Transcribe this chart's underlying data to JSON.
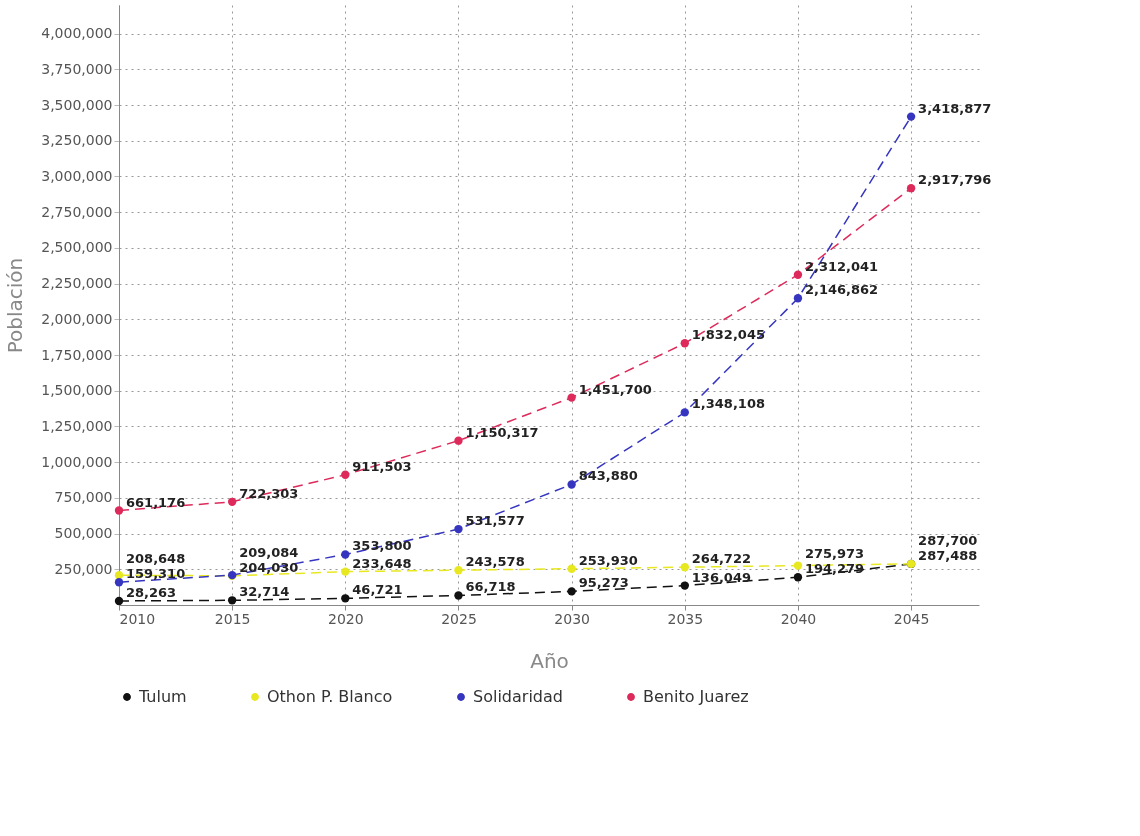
{
  "chart_data": {
    "type": "line",
    "xlabel": "Año",
    "ylabel": "Población",
    "x": [
      2010,
      2015,
      2020,
      2025,
      2030,
      2035,
      2040,
      2045
    ],
    "series": [
      {
        "name": "Tulum",
        "color": "#111111",
        "values": [
          28263,
          32714,
          46721,
          66718,
          95273,
          136049,
          194279,
          287488
        ],
        "value_labels": [
          "28,263",
          "32,714",
          "46,721",
          "66,718",
          "95,273",
          "136,049",
          "194,279",
          "287,488"
        ]
      },
      {
        "name": "Othon P. Blanco",
        "color": "#e8e820",
        "values": [
          208648,
          204030,
          233648,
          243578,
          253930,
          264722,
          275973,
          287700
        ],
        "value_labels": [
          "208,648",
          "204,030",
          "233,648",
          "243,578",
          "253,930",
          "264,722",
          "275,973",
          "287,700"
        ]
      },
      {
        "name": "Solidaridad",
        "color": "#3535c0",
        "values": [
          159310,
          209084,
          353800,
          531577,
          843880,
          1348108,
          2146862,
          3418877
        ],
        "value_labels": [
          "159,310",
          "209,084",
          "353,800",
          "531,577",
          "843,880",
          "1,348,108",
          "2,146,862",
          "3,418,877"
        ]
      },
      {
        "name": "Benito Juarez",
        "color": "#dd2a5a",
        "values": [
          661176,
          722303,
          911503,
          1150317,
          1451700,
          1832045,
          2312041,
          2917796
        ],
        "value_labels": [
          "661,176",
          "722,303",
          "911,503",
          "1,150,317",
          "1,451,700",
          "1,832,045",
          "2,312,041",
          "2,917,796"
        ]
      }
    ],
    "xlim": [
      2010,
      2048
    ],
    "xticks": [
      2010,
      2015,
      2020,
      2025,
      2030,
      2035,
      2040,
      2045
    ],
    "ylim": [
      0,
      4200000
    ],
    "yticks": [
      {
        "value": 250000,
        "label": "250,000"
      },
      {
        "value": 500000,
        "label": "500,000"
      },
      {
        "value": 750000,
        "label": "750,000"
      },
      {
        "value": 1000000,
        "label": "1,000,000"
      },
      {
        "value": 1250000,
        "label": "1,250,000"
      },
      {
        "value": 1500000,
        "label": "1,500,000"
      },
      {
        "value": 1750000,
        "label": "1,750,000"
      },
      {
        "value": 2000000,
        "label": "2,000,000"
      },
      {
        "value": 2250000,
        "label": "2,250,000"
      },
      {
        "value": 2500000,
        "label": "2,500,000"
      },
      {
        "value": 2750000,
        "label": "2,750,000"
      },
      {
        "value": 3000000,
        "label": "3,000,000"
      },
      {
        "value": 3250000,
        "label": "3,250,000"
      },
      {
        "value": 3500000,
        "label": "3,500,000"
      },
      {
        "value": 3750000,
        "label": "3,750,000"
      },
      {
        "value": 4000000,
        "label": "4,000,000"
      }
    ],
    "grid": true,
    "legend": "bottom",
    "marker": "circle",
    "line_style": "dashed"
  }
}
